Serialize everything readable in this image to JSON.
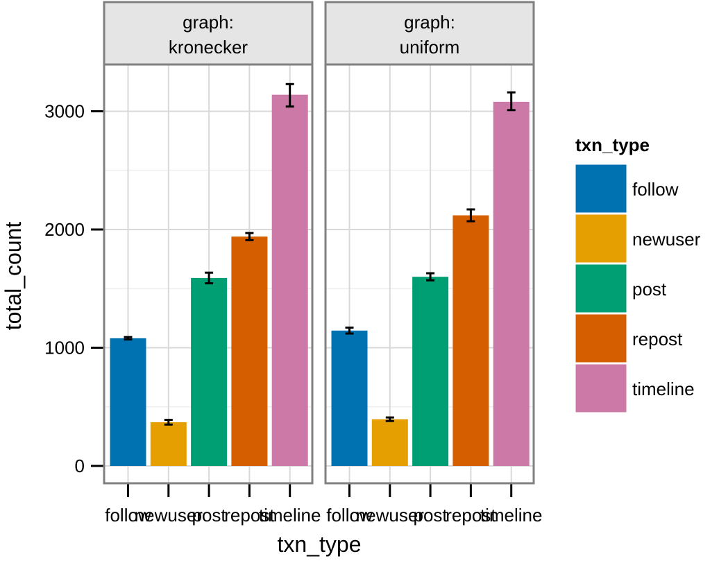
{
  "chart_data": {
    "type": "bar",
    "xlabel": "txn_type",
    "ylabel": "total_count",
    "categories": [
      "follow",
      "newuser",
      "post",
      "repost",
      "timeline"
    ],
    "colors": [
      "#0072B2",
      "#E69F00",
      "#009E73",
      "#D55E00",
      "#CC79A7"
    ],
    "ylim": [
      0,
      3300
    ],
    "yticks": [
      0,
      1000,
      2000,
      3000
    ],
    "grid": true,
    "legend": {
      "title": "txn_type",
      "position": "right"
    },
    "panels": [
      {
        "label": "graph:\nkronecker",
        "values": [
          1080,
          370,
          1590,
          1940,
          3140
        ],
        "err_low": [
          1070,
          350,
          1545,
          1910,
          3040
        ],
        "err_high": [
          1090,
          390,
          1635,
          1970,
          3230
        ]
      },
      {
        "label": "graph:\nuniform",
        "values": [
          1145,
          395,
          1600,
          2120,
          3080
        ],
        "err_low": [
          1120,
          380,
          1570,
          2070,
          3010
        ],
        "err_high": [
          1170,
          410,
          1630,
          2170,
          3160
        ]
      }
    ]
  }
}
